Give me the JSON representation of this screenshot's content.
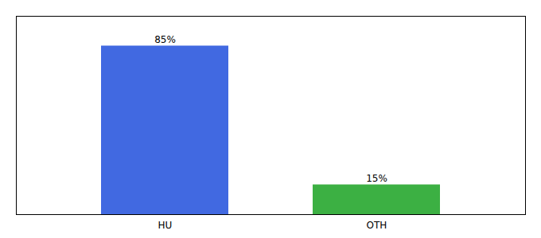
{
  "chart_data": {
    "type": "bar",
    "categories": [
      "HU",
      "OTH"
    ],
    "values": [
      85,
      15
    ],
    "value_labels": [
      "85%",
      "15%"
    ],
    "colors": [
      "#4169e1",
      "#3cb043"
    ],
    "ylim": [
      0,
      100
    ],
    "data_labels": true,
    "tick_labels": "x"
  }
}
